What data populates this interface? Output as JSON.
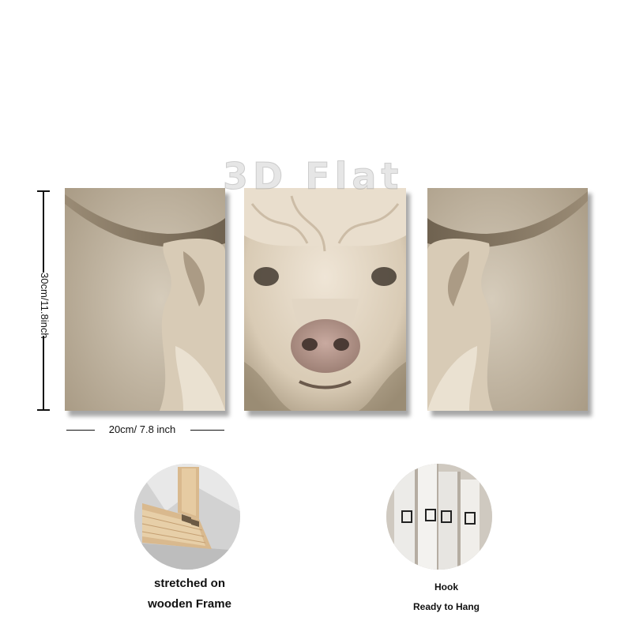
{
  "watermark": {
    "text": "3D Flat"
  },
  "dimensions": {
    "height_label": "30cm/11.8inch",
    "width_label": "20cm/ 7.8 inch"
  },
  "product": {
    "subject": "highland-cow triptych canvas print",
    "panels": [
      "left-horn",
      "cow-face",
      "right-horn"
    ]
  },
  "features": {
    "frame_caption_line1": "stretched on",
    "frame_caption_line2": "wooden Frame",
    "hook_caption_line1": "Hook",
    "hook_caption_line2": "Ready to Hang"
  },
  "colors": {
    "background": "#ffffff",
    "canvas_tone": "#c8bca8",
    "horn": "#8a7b66",
    "fur": "#e8dccb",
    "wood": "#d9b98e"
  }
}
